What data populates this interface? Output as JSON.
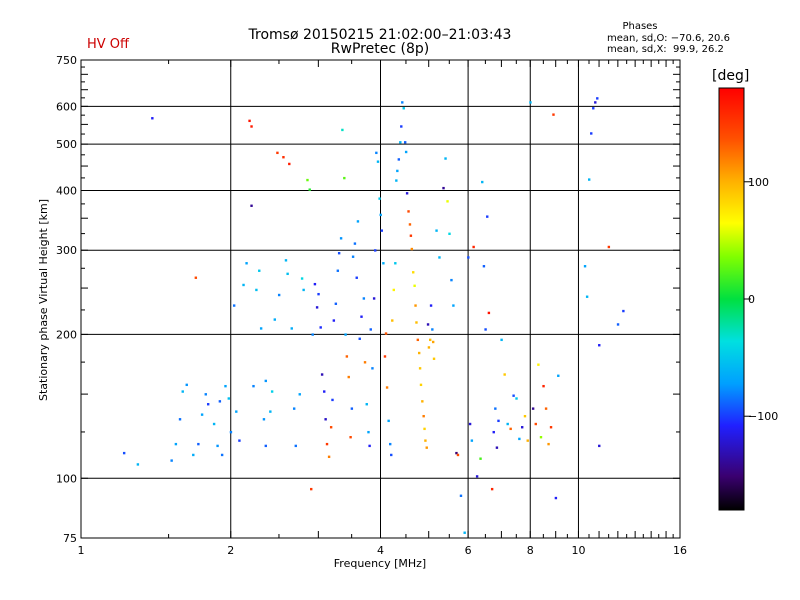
{
  "header": {
    "title": "Tromsø 20150215 21:02:00–21:03:43",
    "subtitle": "RwPretec (8p)",
    "status": "HV Off",
    "status_color": "#cc0000"
  },
  "stats": {
    "title": "Phases",
    "line1": "mean, sd,O: −70.6, 20.6",
    "line2": "mean, sd,X:  99.9, 26.2"
  },
  "colorbar": {
    "unit": "[deg]",
    "ticks": [
      {
        "value": 100,
        "label": "100"
      },
      {
        "value": 0,
        "label": "0"
      },
      {
        "value": -100,
        "label": "−100"
      }
    ],
    "range": [
      -180,
      180
    ]
  },
  "chart_data": {
    "type": "scatter",
    "xlabel": "Frequency [MHz]",
    "ylabel": "Stationary phase Virtual Height [km]",
    "xscale": "log",
    "yscale": "log",
    "xlim": [
      1,
      16
    ],
    "ylim": [
      75,
      750
    ],
    "x_ticks": [
      {
        "value": 1,
        "label": "1"
      },
      {
        "value": 2,
        "label": "2"
      },
      {
        "value": 4,
        "label": "4"
      },
      {
        "value": 6,
        "label": "6"
      },
      {
        "value": 8,
        "label": "8"
      },
      {
        "value": 10,
        "label": "10"
      },
      {
        "value": 16,
        "label": "16"
      }
    ],
    "y_ticks": [
      {
        "value": 75,
        "label": "75"
      },
      {
        "value": 100,
        "label": "100"
      },
      {
        "value": 200,
        "label": "200"
      },
      {
        "value": 300,
        "label": "300"
      },
      {
        "value": 400,
        "label": "400"
      },
      {
        "value": 500,
        "label": "500"
      },
      {
        "value": 600,
        "label": "600"
      },
      {
        "value": 750,
        "label": "750"
      }
    ],
    "x_grid": [
      2,
      4,
      6,
      8,
      10
    ],
    "y_grid": [
      100,
      200,
      300,
      400,
      500,
      600
    ],
    "color_quantity": "phase [deg]",
    "points": [
      [
        1.22,
        113,
        -95
      ],
      [
        1.39,
        567,
        -110
      ],
      [
        1.3,
        107,
        -60
      ],
      [
        1.52,
        109,
        -80
      ],
      [
        1.55,
        118,
        -70
      ],
      [
        1.58,
        133,
        -85
      ],
      [
        1.6,
        152,
        -60
      ],
      [
        1.63,
        157,
        -75
      ],
      [
        1.68,
        112,
        -65
      ],
      [
        1.72,
        118,
        -90
      ],
      [
        1.75,
        136,
        -70
      ],
      [
        1.78,
        150,
        -80
      ],
      [
        1.8,
        143,
        -100
      ],
      [
        1.85,
        130,
        -60
      ],
      [
        1.88,
        117,
        -75
      ],
      [
        1.92,
        112,
        -85
      ],
      [
        1.95,
        156,
        -70
      ],
      [
        1.98,
        147,
        -55
      ],
      [
        2.0,
        125,
        -80
      ],
      [
        2.03,
        230,
        -85
      ],
      [
        2.05,
        138,
        -70
      ],
      [
        2.08,
        120,
        -100
      ],
      [
        2.12,
        254,
        -60
      ],
      [
        2.15,
        282,
        -70
      ],
      [
        2.18,
        560,
        170
      ],
      [
        2.2,
        545,
        165
      ],
      [
        2.2,
        372,
        -140
      ],
      [
        2.22,
        156,
        -80
      ],
      [
        2.25,
        248,
        -55
      ],
      [
        2.28,
        272,
        -50
      ],
      [
        2.3,
        206,
        -70
      ],
      [
        2.33,
        133,
        -75
      ],
      [
        2.35,
        117,
        -90
      ],
      [
        2.4,
        138,
        -60
      ],
      [
        2.42,
        152,
        -45
      ],
      [
        2.45,
        215,
        -65
      ],
      [
        2.48,
        480,
        150
      ],
      [
        2.5,
        242,
        -80
      ],
      [
        2.55,
        470,
        155
      ],
      [
        2.58,
        286,
        -60
      ],
      [
        2.6,
        268,
        -55
      ],
      [
        2.62,
        455,
        165
      ],
      [
        2.65,
        206,
        -65
      ],
      [
        2.68,
        140,
        -80
      ],
      [
        2.7,
        117,
        -85
      ],
      [
        2.75,
        150,
        -70
      ],
      [
        2.78,
        262,
        -40
      ],
      [
        2.8,
        248,
        -60
      ],
      [
        2.85,
        421,
        30
      ],
      [
        2.88,
        402,
        10
      ],
      [
        2.9,
        95,
        150
      ],
      [
        2.92,
        200,
        -80
      ],
      [
        2.95,
        255,
        -110
      ],
      [
        2.98,
        228,
        -120
      ],
      [
        3.0,
        243,
        -100
      ],
      [
        3.03,
        207,
        -105
      ],
      [
        3.05,
        165,
        -130
      ],
      [
        3.08,
        152,
        -110
      ],
      [
        3.1,
        133,
        -125
      ],
      [
        3.12,
        118,
        150
      ],
      [
        3.15,
        111,
        120
      ],
      [
        3.18,
        128,
        140
      ],
      [
        3.2,
        146,
        -100
      ],
      [
        3.22,
        214,
        -110
      ],
      [
        3.25,
        232,
        -90
      ],
      [
        3.28,
        272,
        -85
      ],
      [
        3.3,
        296,
        -95
      ],
      [
        3.33,
        318,
        -75
      ],
      [
        3.35,
        536,
        -30
      ],
      [
        3.38,
        425,
        25
      ],
      [
        3.4,
        200,
        -70
      ],
      [
        3.42,
        180,
        130
      ],
      [
        3.45,
        163,
        120
      ],
      [
        3.48,
        122,
        140
      ],
      [
        3.5,
        140,
        -90
      ],
      [
        3.52,
        291,
        -80
      ],
      [
        3.55,
        310,
        -85
      ],
      [
        3.58,
        263,
        -100
      ],
      [
        3.6,
        345,
        -70
      ],
      [
        3.63,
        196,
        -95
      ],
      [
        3.66,
        218,
        -110
      ],
      [
        3.7,
        238,
        -80
      ],
      [
        3.72,
        175,
        120
      ],
      [
        3.75,
        143,
        -60
      ],
      [
        3.78,
        125,
        -70
      ],
      [
        3.8,
        117,
        -110
      ],
      [
        3.82,
        205,
        -90
      ],
      [
        3.85,
        170,
        -80
      ],
      [
        3.88,
        238,
        -120
      ],
      [
        3.9,
        300,
        -100
      ],
      [
        3.92,
        480,
        -80
      ],
      [
        3.95,
        460,
        -60
      ],
      [
        3.98,
        385,
        -50
      ],
      [
        4.0,
        356,
        -70
      ],
      [
        4.02,
        330,
        -100
      ],
      [
        4.05,
        282,
        -65
      ],
      [
        4.08,
        180,
        150
      ],
      [
        4.1,
        201,
        135
      ],
      [
        4.12,
        155,
        120
      ],
      [
        4.15,
        132,
        -70
      ],
      [
        4.18,
        118,
        -80
      ],
      [
        4.2,
        112,
        -95
      ],
      [
        4.22,
        214,
        95
      ],
      [
        4.25,
        248,
        70
      ],
      [
        4.28,
        282,
        -50
      ],
      [
        4.3,
        420,
        -60
      ],
      [
        4.32,
        440,
        -70
      ],
      [
        4.35,
        465,
        -90
      ],
      [
        4.38,
        505,
        -60
      ],
      [
        4.4,
        545,
        -100
      ],
      [
        4.42,
        612,
        -80
      ],
      [
        4.45,
        595,
        -50
      ],
      [
        4.48,
        505,
        -90
      ],
      [
        4.5,
        482,
        -70
      ],
      [
        4.52,
        395,
        -120
      ],
      [
        4.55,
        362,
        140
      ],
      [
        4.58,
        340,
        130
      ],
      [
        4.6,
        322,
        150
      ],
      [
        4.62,
        302,
        115
      ],
      [
        4.65,
        270,
        80
      ],
      [
        4.68,
        253,
        60
      ],
      [
        4.7,
        230,
        110
      ],
      [
        4.72,
        212,
        95
      ],
      [
        4.75,
        195,
        130
      ],
      [
        4.78,
        183,
        100
      ],
      [
        4.8,
        170,
        90
      ],
      [
        4.82,
        157,
        85
      ],
      [
        4.85,
        145,
        100
      ],
      [
        4.88,
        135,
        120
      ],
      [
        4.9,
        127,
        85
      ],
      [
        4.92,
        120,
        100
      ],
      [
        4.95,
        116,
        110
      ],
      [
        4.98,
        210,
        -130
      ],
      [
        5.0,
        188,
        100
      ],
      [
        5.03,
        195,
        95
      ],
      [
        5.05,
        230,
        -110
      ],
      [
        5.08,
        205,
        -80
      ],
      [
        5.1,
        193,
        105
      ],
      [
        5.12,
        178,
        90
      ],
      [
        5.18,
        330,
        -60
      ],
      [
        5.25,
        290,
        -60
      ],
      [
        5.35,
        405,
        -140
      ],
      [
        5.4,
        467,
        -60
      ],
      [
        5.45,
        380,
        60
      ],
      [
        5.5,
        325,
        -40
      ],
      [
        5.55,
        260,
        -80
      ],
      [
        5.6,
        230,
        -70
      ],
      [
        5.68,
        113,
        -150
      ],
      [
        5.72,
        112,
        140
      ],
      [
        5.8,
        92,
        -85
      ],
      [
        5.9,
        77,
        -60
      ],
      [
        6.0,
        290,
        -95
      ],
      [
        6.05,
        130,
        -120
      ],
      [
        6.1,
        120,
        -70
      ],
      [
        6.15,
        305,
        160
      ],
      [
        6.25,
        101,
        -120
      ],
      [
        6.35,
        110,
        20
      ],
      [
        6.4,
        417,
        -60
      ],
      [
        6.45,
        278,
        -90
      ],
      [
        6.5,
        205,
        -95
      ],
      [
        6.55,
        353,
        -100
      ],
      [
        6.6,
        222,
        170
      ],
      [
        6.7,
        95,
        160
      ],
      [
        6.75,
        125,
        -110
      ],
      [
        6.8,
        140,
        -85
      ],
      [
        6.85,
        116,
        -130
      ],
      [
        6.9,
        132,
        -100
      ],
      [
        7.0,
        195,
        -60
      ],
      [
        7.1,
        165,
        90
      ],
      [
        7.2,
        130,
        -60
      ],
      [
        7.3,
        127,
        130
      ],
      [
        7.4,
        149,
        -95
      ],
      [
        7.5,
        147,
        -50
      ],
      [
        7.6,
        121,
        -70
      ],
      [
        7.7,
        128,
        -120
      ],
      [
        7.8,
        135,
        90
      ],
      [
        7.9,
        120,
        100
      ],
      [
        8.0,
        612,
        -60
      ],
      [
        8.1,
        140,
        -140
      ],
      [
        8.2,
        130,
        140
      ],
      [
        8.3,
        173,
        70
      ],
      [
        8.4,
        122,
        40
      ],
      [
        8.5,
        156,
        160
      ],
      [
        8.6,
        140,
        130
      ],
      [
        8.7,
        118,
        110
      ],
      [
        8.8,
        128,
        150
      ],
      [
        8.9,
        577,
        150
      ],
      [
        9.0,
        91,
        -110
      ],
      [
        9.1,
        164,
        -70
      ],
      [
        10.5,
        422,
        -60
      ],
      [
        10.6,
        527,
        -100
      ],
      [
        10.7,
        595,
        -100
      ],
      [
        10.8,
        612,
        -120
      ],
      [
        10.9,
        624,
        -100
      ],
      [
        11.0,
        117,
        -120
      ],
      [
        11.0,
        190,
        -110
      ],
      [
        11.5,
        305,
        150
      ],
      [
        12.0,
        210,
        -90
      ],
      [
        12.3,
        224,
        -100
      ],
      [
        10.4,
        240,
        -60
      ],
      [
        10.3,
        278,
        -70
      ],
      [
        1.7,
        263,
        140
      ],
      [
        1.9,
        145,
        -90
      ],
      [
        2.35,
        160,
        -75
      ]
    ]
  }
}
